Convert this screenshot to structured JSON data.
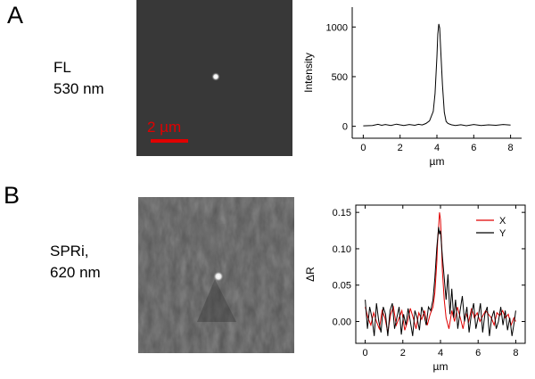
{
  "figure": {
    "panel_a": {
      "letter": "A",
      "label_line1": "FL",
      "label_line2": "530 nm",
      "scalebar_label": "2 µm"
    },
    "panel_b": {
      "letter": "B",
      "label_line1": "SPRi,",
      "label_line2": "620 nm"
    }
  },
  "colors": {
    "scalebar": "#e00000",
    "series_x": "#e00000",
    "series_y": "#000000",
    "fl_background": "#383838",
    "spr_background": "#474747"
  },
  "chart_data": [
    {
      "type": "line",
      "title": "",
      "xlabel": "µm",
      "ylabel": "Intensity",
      "xlim": [
        -0.6,
        8.6
      ],
      "ylim": [
        -120,
        1200
      ],
      "xticks": [
        0,
        2,
        4,
        6,
        8
      ],
      "xtick_labels": [
        "0",
        "2",
        "4",
        "6",
        "8"
      ],
      "yticks": [
        0,
        500,
        1000
      ],
      "ytick_labels": [
        "0",
        "500",
        "1000"
      ],
      "grid": false,
      "legend": "none",
      "series": [
        {
          "x": [
            0.0,
            0.5,
            0.8,
            1.0,
            1.2,
            1.5,
            1.8,
            2.0,
            2.2,
            2.5,
            2.8,
            3.0,
            3.2,
            3.4,
            3.6,
            3.8,
            3.9,
            4.0,
            4.05,
            4.1,
            4.15,
            4.2,
            4.3,
            4.4,
            4.5,
            4.6,
            4.8,
            5.0,
            5.3,
            5.6,
            6.0,
            6.4,
            6.8,
            7.2,
            7.6,
            8.0
          ],
          "values": [
            5,
            8,
            20,
            10,
            18,
            8,
            22,
            15,
            8,
            18,
            10,
            20,
            14,
            28,
            55,
            150,
            330,
            700,
            930,
            1030,
            990,
            800,
            420,
            140,
            50,
            28,
            15,
            8,
            16,
            6,
            18,
            8,
            15,
            10,
            18,
            12
          ]
        }
      ]
    },
    {
      "type": "line",
      "title": "",
      "xlabel": "µm",
      "ylabel": "ΔR",
      "xlim": [
        -0.5,
        8.5
      ],
      "ylim": [
        -0.03,
        0.16
      ],
      "xticks": [
        0,
        2,
        4,
        6,
        8
      ],
      "xtick_labels": [
        "0",
        "2",
        "4",
        "6",
        "8"
      ],
      "yticks": [
        0.0,
        0.05,
        0.1,
        0.15
      ],
      "ytick_labels": [
        "0.00",
        "0.05",
        "0.10",
        "0.15"
      ],
      "grid": false,
      "legend": "top-right",
      "series": [
        {
          "name": "X",
          "x": [
            0.0,
            0.15,
            0.3,
            0.45,
            0.6,
            0.75,
            0.9,
            1.05,
            1.2,
            1.35,
            1.5,
            1.65,
            1.8,
            1.95,
            2.1,
            2.25,
            2.4,
            2.55,
            2.7,
            2.85,
            3.0,
            3.15,
            3.3,
            3.45,
            3.6,
            3.7,
            3.8,
            3.85,
            3.9,
            3.95,
            4.0,
            4.05,
            4.1,
            4.2,
            4.3,
            4.45,
            4.6,
            4.75,
            4.9,
            5.05,
            5.2,
            5.35,
            5.5,
            5.65,
            5.8,
            5.95,
            6.1,
            6.25,
            6.4,
            6.55,
            6.7,
            6.85,
            7.0,
            7.15,
            7.3,
            7.45,
            7.6,
            7.75,
            7.9,
            8.0
          ],
          "values": [
            0.02,
            0.005,
            -0.005,
            0.012,
            0.0,
            -0.01,
            0.015,
            0.005,
            -0.015,
            0.01,
            0.02,
            -0.005,
            0.005,
            0.015,
            -0.012,
            0.0,
            0.018,
            0.005,
            -0.01,
            0.012,
            0.003,
            0.015,
            -0.005,
            0.01,
            0.02,
            0.04,
            0.08,
            0.11,
            0.13,
            0.15,
            0.14,
            0.11,
            0.07,
            0.03,
            0.005,
            -0.01,
            0.015,
            0.0,
            0.02,
            0.005,
            -0.01,
            0.012,
            0.0,
            0.018,
            0.005,
            0.012,
            0.0,
            0.008,
            0.015,
            0.01,
            0.005,
            -0.005,
            0.012,
            0.008,
            0.015,
            0.005,
            0.01,
            -0.005,
            0.005,
            0.0
          ]
        },
        {
          "name": "Y",
          "x": [
            0.0,
            0.12,
            0.24,
            0.36,
            0.48,
            0.6,
            0.72,
            0.84,
            0.96,
            1.08,
            1.2,
            1.32,
            1.44,
            1.56,
            1.68,
            1.8,
            1.92,
            2.04,
            2.16,
            2.28,
            2.4,
            2.52,
            2.64,
            2.76,
            2.88,
            3.0,
            3.12,
            3.24,
            3.36,
            3.48,
            3.6,
            3.7,
            3.8,
            3.9,
            3.95,
            4.0,
            4.1,
            4.2,
            4.3,
            4.4,
            4.5,
            4.6,
            4.7,
            4.8,
            4.92,
            5.04,
            5.16,
            5.28,
            5.4,
            5.52,
            5.64,
            5.76,
            5.88,
            6.0,
            6.12,
            6.24,
            6.36,
            6.48,
            6.6,
            6.72,
            6.84,
            6.96,
            7.08,
            7.2,
            7.32,
            7.44,
            7.56,
            7.68,
            7.8,
            7.92,
            8.0
          ],
          "values": [
            0.03,
            -0.01,
            0.02,
            0.005,
            -0.02,
            0.025,
            0.0,
            -0.015,
            0.02,
            0.01,
            -0.02,
            0.015,
            0.025,
            -0.01,
            0.005,
            0.02,
            -0.018,
            0.01,
            -0.005,
            0.018,
            0.0,
            -0.02,
            0.015,
            0.005,
            -0.012,
            0.02,
            0.01,
            -0.005,
            0.02,
            0.015,
            0.03,
            0.06,
            0.1,
            0.13,
            0.12,
            0.125,
            0.09,
            0.06,
            0.03,
            0.065,
            0.01,
            0.045,
            0.005,
            0.03,
            -0.01,
            0.015,
            0.035,
            0.0,
            0.02,
            -0.015,
            0.01,
            0.025,
            -0.01,
            0.005,
            0.025,
            -0.015,
            0.01,
            0.02,
            -0.02,
            0.005,
            0.015,
            -0.01,
            0.0,
            0.02,
            -0.005,
            0.015,
            -0.012,
            0.005,
            -0.02,
            0.0,
            0.015
          ]
        }
      ]
    }
  ]
}
